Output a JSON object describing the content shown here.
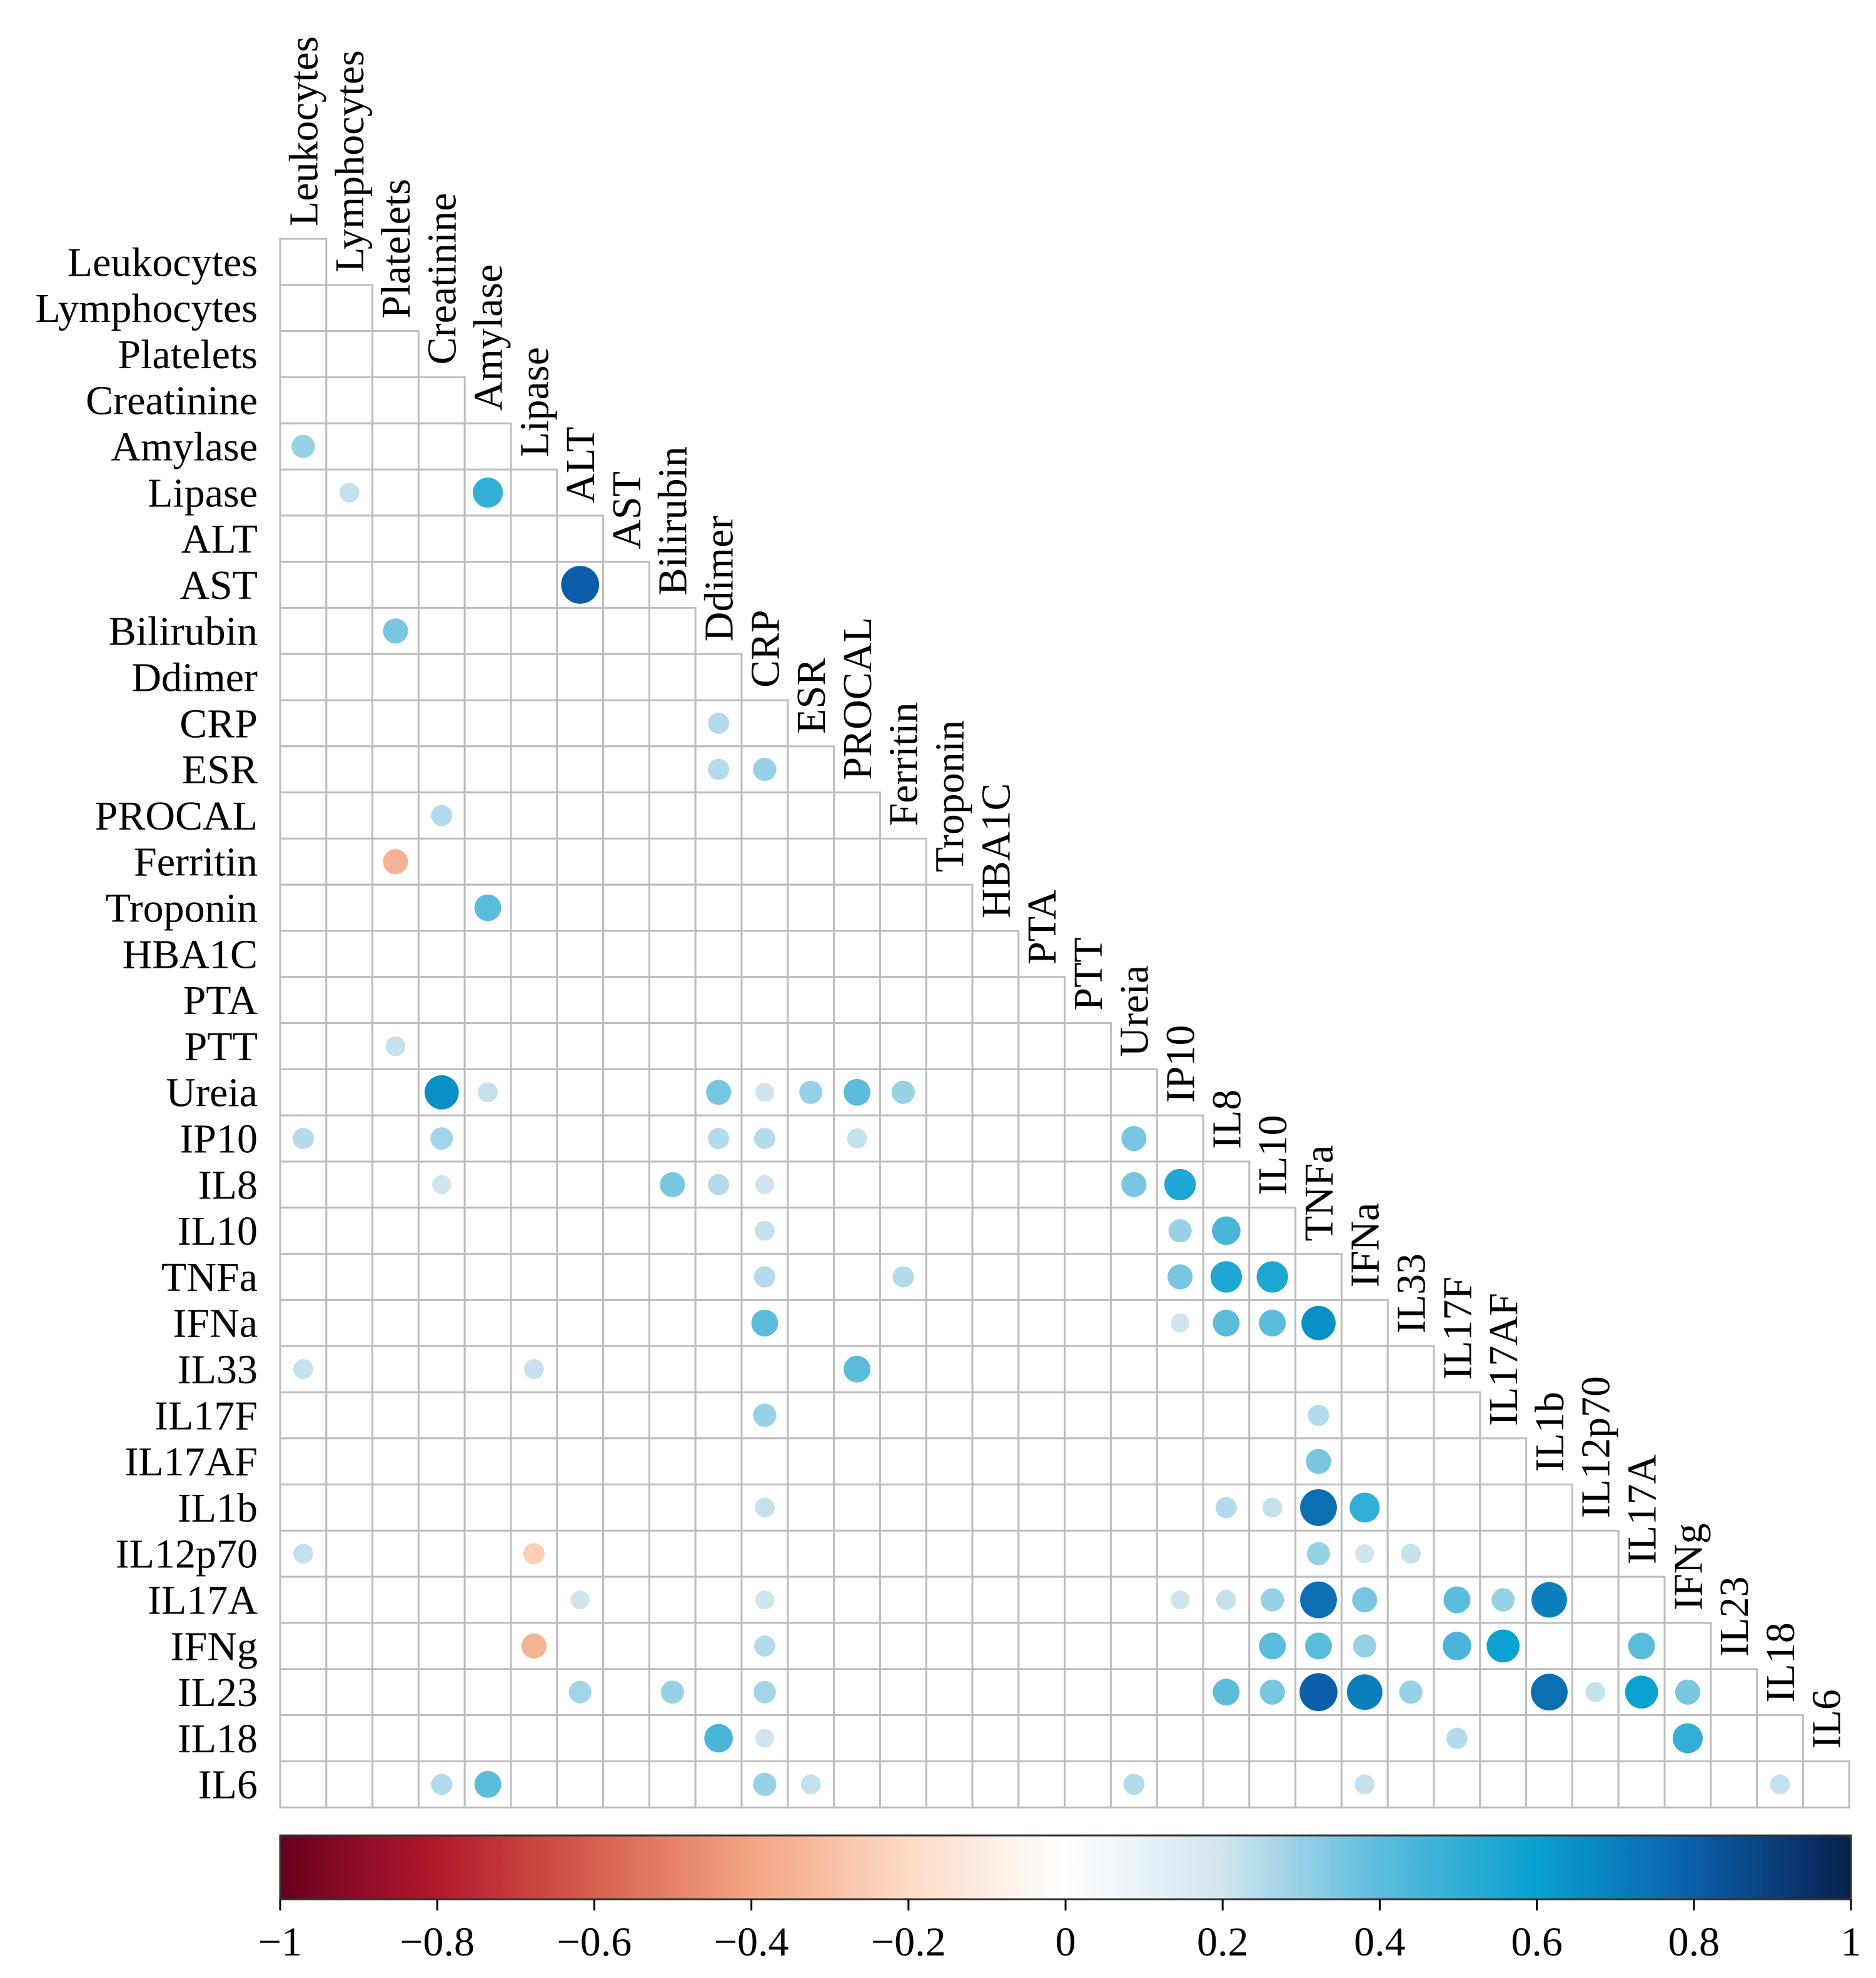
{
  "chart_data": {
    "type": "heatmap",
    "subtype": "correlation-lower-triangle",
    "title": "",
    "variables": [
      "Leukocytes",
      "Lymphocytes",
      "Platelets",
      "Creatinine",
      "Amylase",
      "Lipase",
      "ALT",
      "AST",
      "Bilirubin",
      "Ddimer",
      "CRP",
      "ESR",
      "PROCAL",
      "Ferritin",
      "Troponin",
      "HBA1C",
      "PTA",
      "PTT",
      "Ureia",
      "IP10",
      "IL8",
      "IL10",
      "TNFa",
      "IFNa",
      "IL33",
      "IL17F",
      "IL17AF",
      "IL1b",
      "IL12p70",
      "IL17A",
      "IFNg",
      "IL23",
      "IL18",
      "IL6"
    ],
    "correlations": [
      {
        "row": "Amylase",
        "col": "Leukocytes",
        "value": 0.3
      },
      {
        "row": "Lipase",
        "col": "Lymphocytes",
        "value": 0.22
      },
      {
        "row": "Lipase",
        "col": "Amylase",
        "value": 0.5
      },
      {
        "row": "AST",
        "col": "ALT",
        "value": 0.8
      },
      {
        "row": "Bilirubin",
        "col": "Platelets",
        "value": 0.35
      },
      {
        "row": "CRP",
        "col": "Ddimer",
        "value": 0.25
      },
      {
        "row": "ESR",
        "col": "Ddimer",
        "value": 0.25
      },
      {
        "row": "ESR",
        "col": "CRP",
        "value": 0.3
      },
      {
        "row": "PROCAL",
        "col": "Creatinine",
        "value": 0.25
      },
      {
        "row": "Ferritin",
        "col": "Platelets",
        "value": -0.35
      },
      {
        "row": "Troponin",
        "col": "Amylase",
        "value": 0.4
      },
      {
        "row": "PTT",
        "col": "Platelets",
        "value": 0.22
      },
      {
        "row": "Ureia",
        "col": "Creatinine",
        "value": 0.65
      },
      {
        "row": "Ureia",
        "col": "Amylase",
        "value": 0.22
      },
      {
        "row": "Ureia",
        "col": "Ddimer",
        "value": 0.35
      },
      {
        "row": "Ureia",
        "col": "CRP",
        "value": 0.2
      },
      {
        "row": "Ureia",
        "col": "ESR",
        "value": 0.3
      },
      {
        "row": "Ureia",
        "col": "PROCAL",
        "value": 0.4
      },
      {
        "row": "Ureia",
        "col": "Ferritin",
        "value": 0.3
      },
      {
        "row": "IP10",
        "col": "Leukocytes",
        "value": 0.25
      },
      {
        "row": "IP10",
        "col": "Creatinine",
        "value": 0.28
      },
      {
        "row": "IP10",
        "col": "Ddimer",
        "value": 0.25
      },
      {
        "row": "IP10",
        "col": "CRP",
        "value": 0.25
      },
      {
        "row": "IP10",
        "col": "PROCAL",
        "value": 0.22
      },
      {
        "row": "IP10",
        "col": "Ureia",
        "value": 0.35
      },
      {
        "row": "IL8",
        "col": "Creatinine",
        "value": 0.2
      },
      {
        "row": "IL8",
        "col": "Ddimer",
        "value": 0.25
      },
      {
        "row": "IL8",
        "col": "Bilirubin",
        "value": 0.35
      },
      {
        "row": "IL8",
        "col": "CRP",
        "value": 0.2
      },
      {
        "row": "IL8",
        "col": "Ureia",
        "value": 0.35
      },
      {
        "row": "IL8",
        "col": "IP10",
        "value": 0.55
      },
      {
        "row": "IL10",
        "col": "CRP",
        "value": 0.22
      },
      {
        "row": "IL10",
        "col": "IP10",
        "value": 0.3
      },
      {
        "row": "IL10",
        "col": "IL8",
        "value": 0.45
      },
      {
        "row": "TNFa",
        "col": "CRP",
        "value": 0.25
      },
      {
        "row": "TNFa",
        "col": "Ferritin",
        "value": 0.25
      },
      {
        "row": "TNFa",
        "col": "IP10",
        "value": 0.35
      },
      {
        "row": "TNFa",
        "col": "IL8",
        "value": 0.55
      },
      {
        "row": "TNFa",
        "col": "IL10",
        "value": 0.55
      },
      {
        "row": "IFNa",
        "col": "CRP",
        "value": 0.4
      },
      {
        "row": "IFNa",
        "col": "IP10",
        "value": 0.2
      },
      {
        "row": "IFNa",
        "col": "IL8",
        "value": 0.4
      },
      {
        "row": "IFNa",
        "col": "IL10",
        "value": 0.4
      },
      {
        "row": "IFNa",
        "col": "TNFa",
        "value": 0.65
      },
      {
        "row": "IL33",
        "col": "Leukocytes",
        "value": 0.22
      },
      {
        "row": "IL33",
        "col": "Lipase",
        "value": 0.22
      },
      {
        "row": "IL33",
        "col": "PROCAL",
        "value": 0.4
      },
      {
        "row": "IL17F",
        "col": "CRP",
        "value": 0.3
      },
      {
        "row": "IL17F",
        "col": "TNFa",
        "value": 0.25
      },
      {
        "row": "IL17AF",
        "col": "TNFa",
        "value": 0.35
      },
      {
        "row": "IL1b",
        "col": "CRP",
        "value": 0.22
      },
      {
        "row": "IL1b",
        "col": "IL8",
        "value": 0.25
      },
      {
        "row": "IL1b",
        "col": "IL10",
        "value": 0.22
      },
      {
        "row": "IL1b",
        "col": "TNFa",
        "value": 0.75
      },
      {
        "row": "IL1b",
        "col": "IFNa",
        "value": 0.5
      },
      {
        "row": "IL12p70",
        "col": "Leukocytes",
        "value": 0.22
      },
      {
        "row": "IL12p70",
        "col": "Lipase",
        "value": -0.25
      },
      {
        "row": "IL12p70",
        "col": "TNFa",
        "value": 0.3
      },
      {
        "row": "IL12p70",
        "col": "IFNa",
        "value": 0.2
      },
      {
        "row": "IL12p70",
        "col": "IL33",
        "value": 0.22
      },
      {
        "row": "IL17A",
        "col": "ALT",
        "value": 0.2
      },
      {
        "row": "IL17A",
        "col": "CRP",
        "value": 0.2
      },
      {
        "row": "IL17A",
        "col": "IP10",
        "value": 0.2
      },
      {
        "row": "IL17A",
        "col": "IL8",
        "value": 0.22
      },
      {
        "row": "IL17A",
        "col": "IL10",
        "value": 0.3
      },
      {
        "row": "IL17A",
        "col": "TNFa",
        "value": 0.75
      },
      {
        "row": "IL17A",
        "col": "IFNa",
        "value": 0.35
      },
      {
        "row": "IL17A",
        "col": "IL17F",
        "value": 0.4
      },
      {
        "row": "IL17A",
        "col": "IL17AF",
        "value": 0.3
      },
      {
        "row": "IL17A",
        "col": "IL1b",
        "value": 0.7
      },
      {
        "row": "IFNg",
        "col": "Lipase",
        "value": -0.35
      },
      {
        "row": "IFNg",
        "col": "CRP",
        "value": 0.25
      },
      {
        "row": "IFNg",
        "col": "IL10",
        "value": 0.4
      },
      {
        "row": "IFNg",
        "col": "TNFa",
        "value": 0.4
      },
      {
        "row": "IFNg",
        "col": "IFNa",
        "value": 0.3
      },
      {
        "row": "IFNg",
        "col": "IL17F",
        "value": 0.45
      },
      {
        "row": "IFNg",
        "col": "IL17AF",
        "value": 0.6
      },
      {
        "row": "IFNg",
        "col": "IL17A",
        "value": 0.4
      },
      {
        "row": "IL23",
        "col": "ALT",
        "value": 0.28
      },
      {
        "row": "IL23",
        "col": "Bilirubin",
        "value": 0.3
      },
      {
        "row": "IL23",
        "col": "CRP",
        "value": 0.28
      },
      {
        "row": "IL23",
        "col": "IL8",
        "value": 0.4
      },
      {
        "row": "IL23",
        "col": "IL10",
        "value": 0.35
      },
      {
        "row": "IL23",
        "col": "TNFa",
        "value": 0.8
      },
      {
        "row": "IL23",
        "col": "IFNa",
        "value": 0.7
      },
      {
        "row": "IL23",
        "col": "IL33",
        "value": 0.3
      },
      {
        "row": "IL23",
        "col": "IL1b",
        "value": 0.75
      },
      {
        "row": "IL23",
        "col": "IL12p70",
        "value": 0.22
      },
      {
        "row": "IL23",
        "col": "IL17A",
        "value": 0.6
      },
      {
        "row": "IL23",
        "col": "IFNg",
        "value": 0.35
      },
      {
        "row": "IL18",
        "col": "Ddimer",
        "value": 0.45
      },
      {
        "row": "IL18",
        "col": "CRP",
        "value": 0.2
      },
      {
        "row": "IL18",
        "col": "IL17F",
        "value": 0.25
      },
      {
        "row": "IL18",
        "col": "IFNg",
        "value": 0.5
      },
      {
        "row": "IL6",
        "col": "Creatinine",
        "value": 0.25
      },
      {
        "row": "IL6",
        "col": "Amylase",
        "value": 0.4
      },
      {
        "row": "IL6",
        "col": "CRP",
        "value": 0.3
      },
      {
        "row": "IL6",
        "col": "ESR",
        "value": 0.22
      },
      {
        "row": "IL6",
        "col": "Ureia",
        "value": 0.25
      },
      {
        "row": "IL6",
        "col": "IFNa",
        "value": 0.22
      },
      {
        "row": "IL6",
        "col": "IL18",
        "value": 0.22
      }
    ],
    "colorbar": {
      "range": [
        -1,
        1
      ],
      "tick_values": [
        -1,
        -0.8,
        -0.6,
        -0.4,
        -0.2,
        0,
        0.2,
        0.4,
        0.6,
        0.8,
        1
      ],
      "tick_labels": [
        "−1",
        "−0.8",
        "−0.6",
        "−0.4",
        "−0.2",
        "0",
        "0.2",
        "0.4",
        "0.6",
        "0.8",
        "1"
      ],
      "colors": {
        "neg_1": "#67001f",
        "neg_08": "#b2182b",
        "neg_06": "#d6604d",
        "neg_04": "#f4a582",
        "neg_02": "#fddbc7",
        "zero": "#ffffff",
        "pos_02": "#d1e5f0",
        "pos_04": "#5cbcdc",
        "pos_06": "#0aa0d0",
        "pos_08": "#0b5ea8",
        "pos_1": "#08204d"
      }
    },
    "grid": true,
    "legend": "colorbar-bottom"
  }
}
